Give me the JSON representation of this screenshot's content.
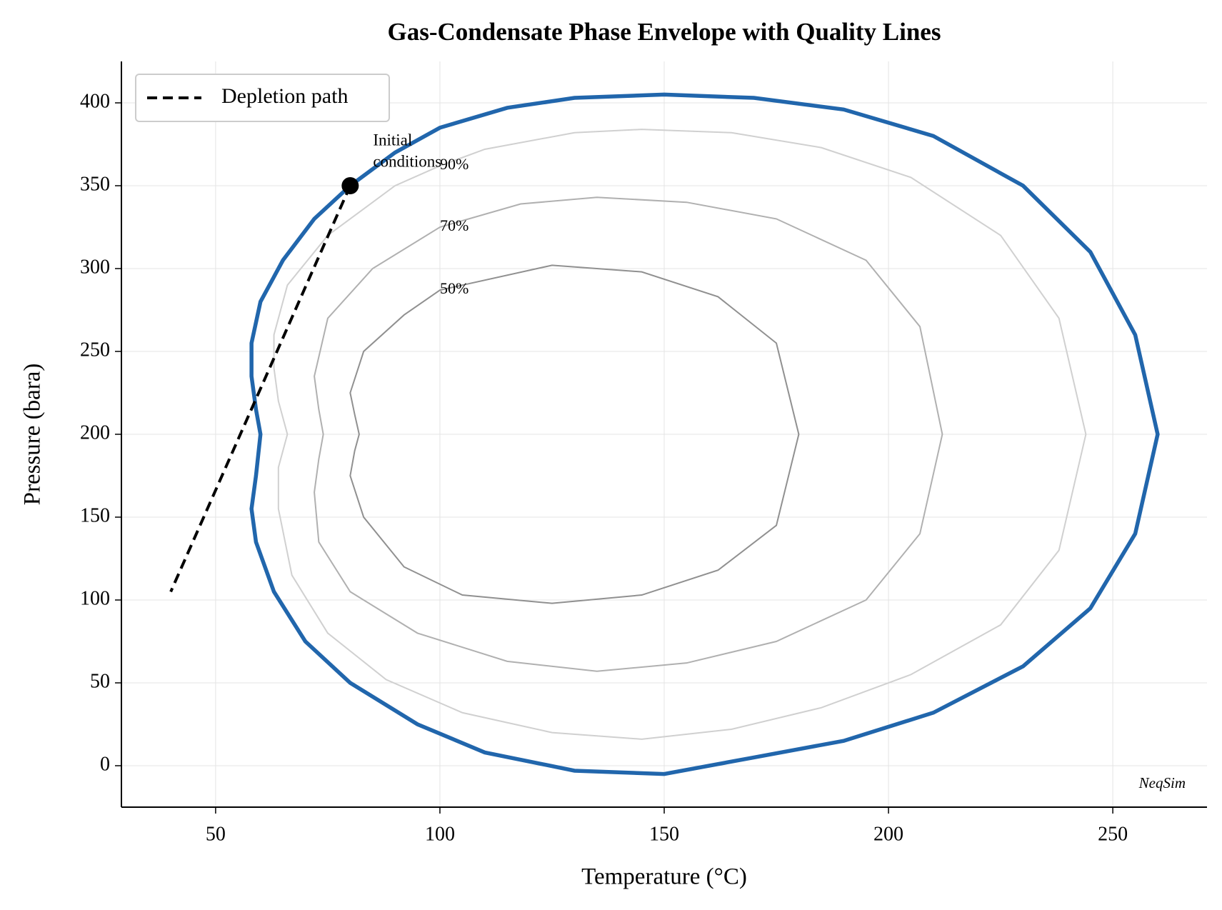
{
  "chart_data": {
    "type": "line",
    "title": "Gas-Condensate Phase Envelope with Quality Lines",
    "x_label": "Temperature (°C)",
    "y_label": "Pressure (bara)",
    "xlim": [
      29,
      271
    ],
    "ylim": [
      -25,
      425
    ],
    "xticks": [
      50,
      100,
      150,
      200,
      250
    ],
    "yticks": [
      0,
      50,
      100,
      150,
      200,
      250,
      300,
      350,
      400
    ],
    "grid": true,
    "legend": "upper left",
    "watermark": "NeqSim",
    "series": [
      {
        "color": "#2166ac",
        "closed": true,
        "x": [
          80,
          90,
          100,
          115,
          130,
          150,
          170,
          190,
          210,
          230,
          245,
          255,
          260,
          255,
          245,
          230,
          210,
          190,
          170,
          150,
          130,
          110,
          95,
          80,
          70,
          63,
          59,
          58,
          59,
          60,
          59,
          58,
          58,
          60,
          65,
          72
        ],
        "values": [
          350,
          370,
          385,
          397,
          403,
          405,
          403,
          396,
          380,
          350,
          310,
          260,
          200,
          140,
          95,
          60,
          32,
          15,
          5,
          -5,
          -3,
          8,
          25,
          50,
          75,
          105,
          135,
          155,
          175,
          200,
          215,
          235,
          255,
          280,
          305,
          330
        ]
      },
      {
        "label": "90%",
        "color": "#d0d0d0",
        "closed": true,
        "x": [
          100,
          110,
          130,
          145,
          165,
          185,
          205,
          225,
          238,
          244,
          238,
          225,
          205,
          185,
          165,
          145,
          125,
          105,
          88,
          75,
          67,
          64,
          64,
          66,
          64,
          63,
          63,
          66,
          75,
          90
        ],
        "values": [
          362,
          372,
          382,
          384,
          382,
          373,
          355,
          320,
          270,
          200,
          130,
          85,
          55,
          35,
          22,
          16,
          20,
          32,
          52,
          80,
          115,
          155,
          180,
          200,
          220,
          240,
          260,
          290,
          320,
          350
        ]
      },
      {
        "label": "70%",
        "color": "#b0b0b0",
        "closed": true,
        "x": [
          100,
          118,
          135,
          155,
          175,
          195,
          207,
          212,
          207,
          195,
          175,
          155,
          135,
          115,
          95,
          80,
          73,
          72,
          73,
          74,
          73,
          72,
          75,
          85
        ],
        "values": [
          325,
          339,
          343,
          340,
          330,
          305,
          265,
          200,
          140,
          100,
          75,
          62,
          57,
          63,
          80,
          105,
          135,
          165,
          185,
          200,
          215,
          235,
          270,
          300
        ]
      },
      {
        "label": "50%",
        "color": "#909090",
        "closed": true,
        "x": [
          100,
          105,
          125,
          145,
          162,
          175,
          180,
          175,
          162,
          145,
          125,
          105,
          92,
          83,
          80,
          81,
          82,
          81,
          80,
          83,
          92
        ],
        "values": [
          287,
          290,
          302,
          298,
          283,
          255,
          200,
          145,
          118,
          103,
          98,
          103,
          120,
          150,
          175,
          190,
          200,
          212,
          225,
          250,
          272
        ]
      },
      {
        "name": "Depletion path",
        "color": "#000000",
        "dashed": true,
        "x": [
          80,
          40
        ],
        "values": [
          350,
          105
        ]
      }
    ],
    "annotation": {
      "lines": [
        "Initial",
        "conditions"
      ],
      "x": 80,
      "y": 350
    }
  }
}
